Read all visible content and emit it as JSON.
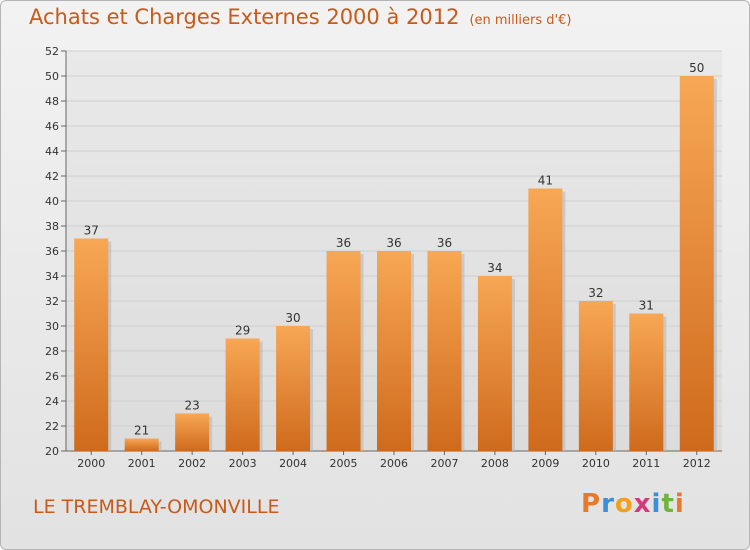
{
  "title": "Achats et Charges Externes 2000 à 2012",
  "unit": "(en milliers d'€)",
  "city": "LE TREMBLAY-OMONVILLE",
  "logo": {
    "text": "Proxiti",
    "colors": [
      "#e8782a",
      "#3a8fd8",
      "#f0a21e",
      "#d23a7a",
      "#3a8fd8",
      "#6fb53a",
      "#e8782a"
    ]
  },
  "colors": {
    "title": "#c85a1a",
    "bar_top": "#f7a755",
    "bar_bottom": "#cf6a1c",
    "grid": "#cfcfcf",
    "axis_text": "#333333"
  },
  "chart_data": {
    "type": "bar",
    "categories": [
      "2000",
      "2001",
      "2002",
      "2003",
      "2004",
      "2005",
      "2006",
      "2007",
      "2008",
      "2009",
      "2010",
      "2011",
      "2012"
    ],
    "values": [
      37,
      21,
      23,
      29,
      30,
      36,
      36,
      36,
      34,
      41,
      32,
      31,
      50
    ],
    "ylim": [
      20,
      52
    ],
    "yticks": [
      20,
      22,
      24,
      26,
      28,
      30,
      32,
      34,
      36,
      38,
      40,
      42,
      44,
      46,
      48,
      50,
      52
    ],
    "grid": true,
    "legend": "none"
  }
}
